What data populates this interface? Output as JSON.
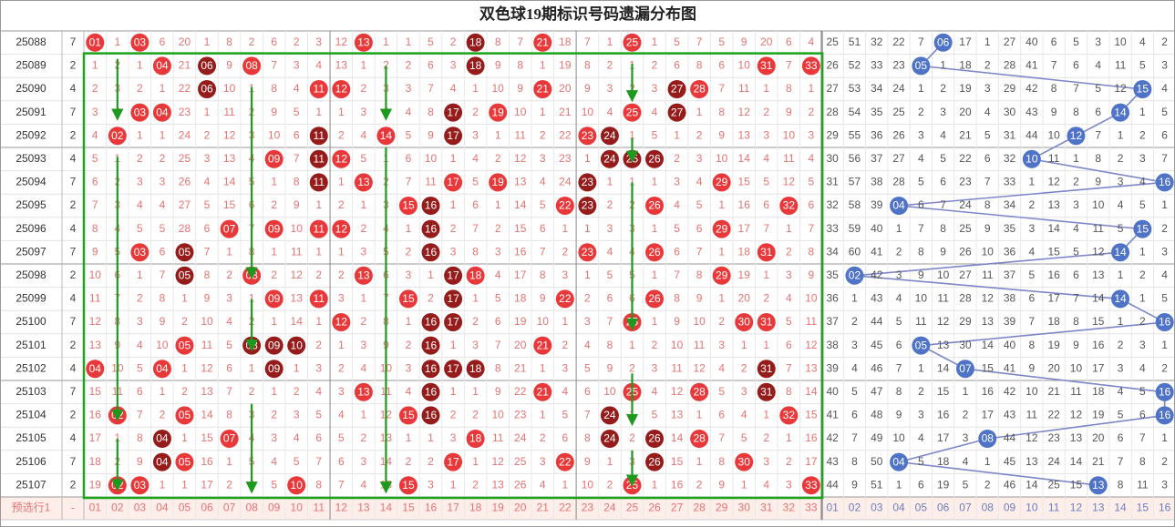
{
  "title": "双色球19期标识号码遗漏分布图",
  "rows": [
    {
      "issue": "25088",
      "n": 7,
      "red": [
        "01",
        1,
        "03",
        6,
        20,
        1,
        8,
        2,
        6,
        2,
        3,
        12,
        "13",
        1,
        1,
        5,
        2,
        "18",
        8,
        7,
        "21",
        18,
        7,
        1,
        "25",
        1,
        5,
        7,
        5,
        9,
        20,
        6,
        4
      ],
      "blue": [
        25,
        51,
        32,
        22,
        7,
        "06",
        17,
        1,
        27,
        40,
        6,
        5,
        3,
        10,
        4,
        2
      ]
    },
    {
      "issue": "25089",
      "n": 2,
      "red": [
        1,
        2,
        1,
        "04",
        21,
        "06",
        9,
        "08",
        7,
        3,
        4,
        13,
        1,
        2,
        2,
        6,
        3,
        "18",
        9,
        8,
        1,
        19,
        8,
        2,
        1,
        2,
        6,
        8,
        6,
        10,
        "31",
        7,
        "33"
      ],
      "blue": [
        26,
        52,
        33,
        23,
        "05",
        1,
        18,
        2,
        28,
        41,
        7,
        6,
        4,
        11,
        5,
        3
      ]
    },
    {
      "issue": "25090",
      "n": 4,
      "red": [
        2,
        3,
        2,
        1,
        22,
        "06",
        10,
        1,
        8,
        4,
        "11",
        "12",
        2,
        3,
        3,
        7,
        4,
        1,
        10,
        9,
        "21",
        20,
        9,
        3,
        2,
        3,
        "27",
        "28",
        7,
        11,
        1,
        8,
        1
      ],
      "blue": [
        27,
        53,
        34,
        24,
        1,
        2,
        19,
        3,
        29,
        42,
        8,
        7,
        5,
        12,
        "15",
        4
      ]
    },
    {
      "issue": "25091",
      "n": 7,
      "red": [
        3,
        4,
        "03",
        "04",
        23,
        1,
        11,
        2,
        9,
        5,
        1,
        1,
        3,
        4,
        4,
        8,
        "17",
        2,
        "19",
        10,
        1,
        21,
        10,
        4,
        "25",
        4,
        "27",
        1,
        8,
        12,
        2,
        9,
        2
      ],
      "blue": [
        28,
        54,
        35,
        25,
        2,
        3,
        20,
        4,
        30,
        43,
        9,
        8,
        6,
        "14",
        1,
        5
      ]
    },
    {
      "issue": "25092",
      "n": 2,
      "red": [
        4,
        "02",
        1,
        1,
        24,
        2,
        12,
        3,
        10,
        6,
        "11",
        2,
        4,
        "14",
        5,
        9,
        "17",
        3,
        1,
        11,
        2,
        22,
        "23",
        "24",
        1,
        5,
        1,
        2,
        9,
        13,
        3,
        10,
        3
      ],
      "blue": [
        29,
        55,
        36,
        26,
        3,
        4,
        21,
        5,
        31,
        44,
        10,
        "12",
        7,
        1,
        2,
        6
      ]
    },
    {
      "issue": "25093",
      "n": 4,
      "red": [
        5,
        1,
        2,
        2,
        25,
        3,
        13,
        4,
        "09",
        7,
        "11",
        "12",
        5,
        1,
        6,
        10,
        1,
        4,
        2,
        12,
        3,
        23,
        1,
        "24",
        "25",
        "26",
        2,
        3,
        10,
        14,
        4,
        11,
        4
      ],
      "blue": [
        30,
        56,
        37,
        27,
        4,
        5,
        22,
        6,
        32,
        "10",
        11,
        1,
        8,
        2,
        3,
        7
      ]
    },
    {
      "issue": "25094",
      "n": 7,
      "red": [
        6,
        2,
        3,
        3,
        26,
        4,
        14,
        5,
        1,
        8,
        "11",
        1,
        "13",
        2,
        7,
        11,
        "17",
        5,
        "19",
        13,
        4,
        24,
        "23",
        1,
        1,
        1,
        3,
        4,
        "29",
        15,
        5,
        12,
        5
      ],
      "blue": [
        31,
        57,
        38,
        28,
        5,
        6,
        23,
        7,
        33,
        1,
        12,
        2,
        9,
        3,
        4,
        "16"
      ]
    },
    {
      "issue": "25095",
      "n": 2,
      "red": [
        7,
        3,
        4,
        4,
        27,
        5,
        15,
        6,
        2,
        9,
        1,
        2,
        1,
        3,
        "15",
        "16",
        1,
        6,
        1,
        14,
        5,
        "22",
        "23",
        2,
        2,
        "26",
        4,
        5,
        1,
        16,
        6,
        "32",
        6
      ],
      "blue": [
        32,
        58,
        39,
        "04",
        6,
        7,
        24,
        8,
        34,
        2,
        13,
        3,
        10,
        4,
        5,
        1
      ]
    },
    {
      "issue": "25096",
      "n": 4,
      "red": [
        8,
        4,
        5,
        5,
        28,
        6,
        "07",
        7,
        "09",
        10,
        "11",
        "12",
        2,
        4,
        1,
        "16",
        2,
        7,
        2,
        15,
        6,
        1,
        1,
        3,
        3,
        1,
        5,
        6,
        "29",
        17,
        7,
        1,
        7
      ],
      "blue": [
        33,
        59,
        40,
        1,
        7,
        8,
        25,
        9,
        35,
        3,
        14,
        4,
        11,
        5,
        "15",
        2
      ]
    },
    {
      "issue": "25097",
      "n": 7,
      "red": [
        9,
        5,
        "03",
        6,
        "05",
        7,
        1,
        8,
        1,
        11,
        1,
        1,
        3,
        5,
        2,
        "16",
        3,
        8,
        3,
        16,
        7,
        2,
        "23",
        4,
        4,
        "26",
        6,
        7,
        1,
        18,
        "31",
        2,
        8
      ],
      "blue": [
        34,
        60,
        41,
        2,
        8,
        9,
        26,
        10,
        36,
        4,
        15,
        5,
        12,
        "14",
        1,
        3
      ]
    },
    {
      "issue": "25098",
      "n": 2,
      "red": [
        10,
        6,
        1,
        7,
        "05",
        8,
        2,
        "08",
        2,
        12,
        2,
        2,
        "13",
        6,
        3,
        1,
        "17",
        "18",
        4,
        17,
        8,
        3,
        1,
        5,
        5,
        1,
        7,
        8,
        "29",
        19,
        1,
        3,
        9
      ],
      "blue": [
        35,
        "02",
        42,
        3,
        9,
        10,
        27,
        11,
        37,
        5,
        16,
        6,
        13,
        1,
        2,
        4
      ]
    },
    {
      "issue": "25099",
      "n": 4,
      "red": [
        11,
        7,
        2,
        8,
        1,
        9,
        3,
        1,
        "09",
        13,
        "11",
        3,
        1,
        7,
        "15",
        2,
        "17",
        1,
        5,
        18,
        9,
        "22",
        2,
        6,
        6,
        "26",
        8,
        9,
        1,
        20,
        2,
        4,
        10
      ],
      "blue": [
        36,
        1,
        43,
        4,
        10,
        11,
        28,
        12,
        38,
        6,
        17,
        7,
        14,
        "14",
        1,
        5
      ]
    },
    {
      "issue": "25100",
      "n": 7,
      "red": [
        12,
        8,
        3,
        9,
        2,
        10,
        4,
        2,
        1,
        14,
        1,
        "12",
        2,
        8,
        1,
        "16",
        "17",
        2,
        6,
        19,
        10,
        1,
        3,
        7,
        "25",
        1,
        9,
        10,
        2,
        "30",
        "31",
        5,
        11
      ],
      "blue": [
        37,
        2,
        44,
        5,
        11,
        12,
        29,
        13,
        39,
        7,
        18,
        8,
        15,
        1,
        2,
        "16"
      ]
    },
    {
      "issue": "25101",
      "n": 2,
      "red": [
        13,
        9,
        4,
        10,
        "05",
        11,
        5,
        "08",
        "09",
        "10",
        2,
        1,
        3,
        9,
        2,
        "16",
        1,
        3,
        7,
        20,
        "21",
        2,
        4,
        8,
        1,
        2,
        10,
        11,
        3,
        1,
        1,
        6,
        12
      ],
      "blue": [
        38,
        3,
        45,
        6,
        "05",
        13,
        30,
        14,
        40,
        8,
        19,
        9,
        16,
        2,
        3,
        1
      ]
    },
    {
      "issue": "25102",
      "n": 4,
      "red": [
        "04",
        10,
        5,
        "04",
        1,
        12,
        6,
        1,
        "09",
        1,
        3,
        2,
        4,
        10,
        3,
        "16",
        "17",
        "18",
        8,
        21,
        1,
        3,
        5,
        9,
        2,
        3,
        11,
        12,
        4,
        2,
        "31",
        7,
        13
      ],
      "blue": [
        39,
        4,
        46,
        7,
        1,
        14,
        "07",
        15,
        41,
        9,
        20,
        10,
        17,
        3,
        4,
        2
      ]
    },
    {
      "issue": "25103",
      "n": 7,
      "red": [
        15,
        11,
        6,
        1,
        2,
        13,
        7,
        2,
        1,
        2,
        4,
        3,
        "13",
        11,
        4,
        "16",
        1,
        1,
        9,
        22,
        "21",
        4,
        6,
        10,
        "25",
        4,
        12,
        "28",
        5,
        3,
        "31",
        8,
        14
      ],
      "blue": [
        40,
        5,
        47,
        8,
        2,
        15,
        1,
        16,
        42,
        10,
        21,
        11,
        18,
        4,
        5,
        "16"
      ]
    },
    {
      "issue": "25104",
      "n": 2,
      "red": [
        16,
        "02",
        7,
        2,
        "05",
        14,
        8,
        3,
        2,
        3,
        5,
        4,
        1,
        12,
        "15",
        "16",
        2,
        2,
        10,
        23,
        1,
        5,
        7,
        "24",
        1,
        5,
        13,
        1,
        6,
        4,
        1,
        "32",
        15
      ],
      "blue": [
        41,
        6,
        48,
        9,
        3,
        16,
        2,
        17,
        43,
        11,
        22,
        12,
        19,
        5,
        6,
        "16"
      ]
    },
    {
      "issue": "25105",
      "n": 4,
      "red": [
        17,
        1,
        8,
        "04",
        1,
        15,
        "07",
        4,
        3,
        4,
        6,
        5,
        2,
        13,
        1,
        1,
        3,
        "18",
        11,
        24,
        2,
        6,
        8,
        "24",
        2,
        "26",
        14,
        "28",
        7,
        5,
        2,
        1,
        16
      ],
      "blue": [
        42,
        7,
        49,
        10,
        4,
        17,
        3,
        "08",
        44,
        12,
        23,
        13,
        20,
        6,
        7,
        1
      ]
    },
    {
      "issue": "25106",
      "n": 7,
      "red": [
        18,
        2,
        9,
        "04",
        "05",
        16,
        1,
        5,
        4,
        5,
        7,
        6,
        3,
        14,
        2,
        2,
        "17",
        1,
        12,
        25,
        3,
        "22",
        9,
        1,
        3,
        "26",
        15,
        1,
        8,
        "30",
        3,
        2,
        17
      ],
      "blue": [
        43,
        8,
        50,
        "04",
        5,
        18,
        4,
        1,
        45,
        13,
        24,
        14,
        21,
        7,
        8,
        2
      ]
    },
    {
      "issue": "25107",
      "n": 2,
      "red": [
        19,
        "02",
        "03",
        1,
        1,
        17,
        2,
        6,
        5,
        "10",
        8,
        7,
        4,
        15,
        "15",
        3,
        1,
        2,
        13,
        26,
        4,
        1,
        10,
        2,
        "25",
        1,
        16,
        2,
        9,
        1,
        4,
        3,
        "33"
      ],
      "blue": [
        44,
        9,
        51,
        1,
        6,
        19,
        5,
        2,
        46,
        14,
        25,
        15,
        "13",
        8,
        11,
        3
      ]
    }
  ],
  "footer": {
    "label": "预选行1",
    "dash": "-",
    "red": [
      "01",
      "02",
      "03",
      "04",
      "05",
      "06",
      "07",
      "08",
      "09",
      "10",
      "11",
      "12",
      "13",
      "14",
      "15",
      "16",
      "17",
      "18",
      "19",
      "20",
      "21",
      "22",
      "23",
      "24",
      "25",
      "26",
      "27",
      "28",
      "29",
      "30",
      "31",
      "32",
      "33"
    ],
    "blue": [
      "01",
      "02",
      "03",
      "04",
      "05",
      "06",
      "07",
      "08",
      "09",
      "10",
      "11",
      "12",
      "13",
      "14",
      "15",
      "16"
    ]
  }
}
